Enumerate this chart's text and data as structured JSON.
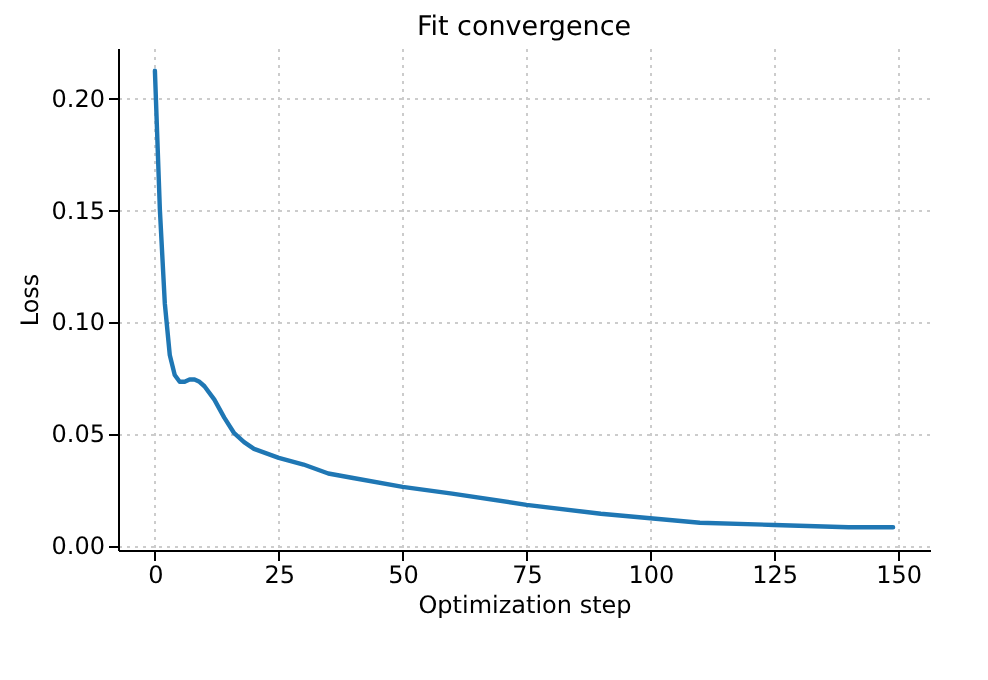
{
  "chart_data": {
    "type": "line",
    "title": "Fit convergence",
    "xlabel": "Optimization step",
    "ylabel": "Loss",
    "x": [
      0,
      1,
      2,
      3,
      4,
      5,
      6,
      7,
      8,
      9,
      10,
      12,
      14,
      16,
      18,
      20,
      25,
      30,
      35,
      40,
      50,
      60,
      75,
      90,
      100,
      110,
      125,
      140,
      149
    ],
    "series": [
      {
        "color": "#1f77b4",
        "values": [
          0.212,
          0.15,
          0.108,
          0.085,
          0.076,
          0.073,
          0.073,
          0.074,
          0.074,
          0.073,
          0.071,
          0.065,
          0.057,
          0.05,
          0.046,
          0.043,
          0.039,
          0.036,
          0.032,
          0.03,
          0.026,
          0.023,
          0.018,
          0.014,
          0.012,
          0.01,
          0.009,
          0.008,
          0.008
        ]
      }
    ],
    "xlim": [
      -7.45,
      156.45
    ],
    "ylim": [
      -0.0022,
      0.2222
    ],
    "xticks": [
      0,
      25,
      50,
      75,
      100,
      125,
      150
    ],
    "yticks": [
      {
        "value": 0,
        "label": "0.00"
      },
      {
        "value": 0.05,
        "label": "0.05"
      },
      {
        "value": 0.1,
        "label": "0.10"
      },
      {
        "value": 0.15,
        "label": "0.15"
      },
      {
        "value": 0.2,
        "label": "0.20"
      }
    ],
    "grid": true,
    "marker": "none",
    "line_style": "solid"
  }
}
